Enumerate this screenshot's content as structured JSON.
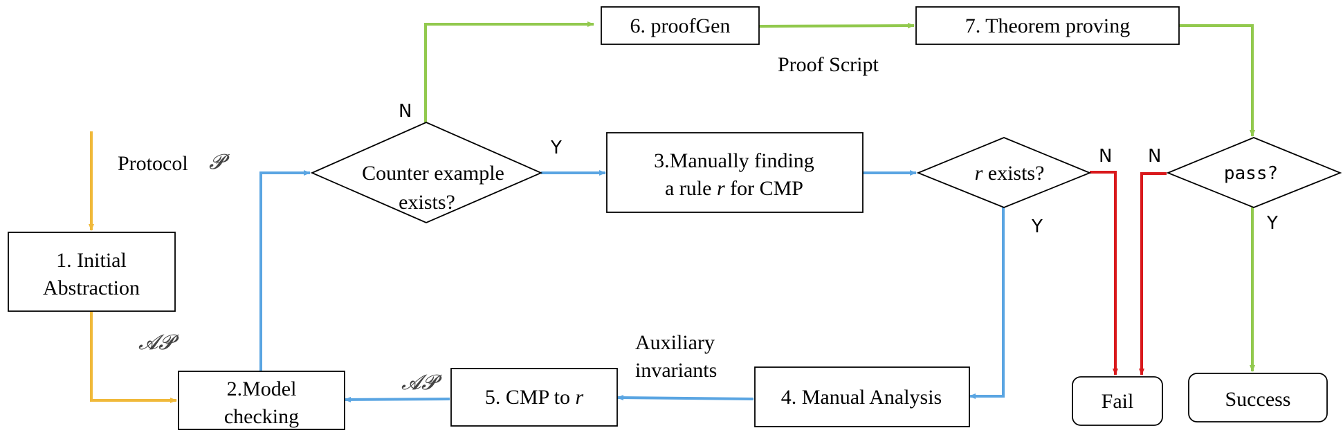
{
  "colors": {
    "yellow": "#F0B93A",
    "blue": "#5AA5E2",
    "green": "#92C94E",
    "red": "#D9191C"
  },
  "labels": {
    "protocol": "Protocol",
    "protocol_symbol": "𝓟",
    "ap_left": "𝓐𝓟",
    "ap_bottom": "𝓐𝓟",
    "proof_script": "Proof Script",
    "auxiliary_line1": "Auxiliary",
    "auxiliary_line2": "invariants",
    "n_counter": "N",
    "y_counter": "Y",
    "n_r_exists": "N",
    "y_r_exists": "Y",
    "n_pass": "N",
    "y_pass": "Y"
  },
  "nodes": {
    "initial_abstraction": {
      "line1": "1. Initial",
      "line2": "Abstraction"
    },
    "model_checking": {
      "line1": "2.Model",
      "line2": "checking"
    },
    "counter_example": {
      "line1": "Counter example",
      "line2": "exists?"
    },
    "manual_finding": {
      "line1": "3.Manually finding",
      "line2_pre": "a rule ",
      "line2_var": "r",
      "line2_post": " for CMP"
    },
    "r_exists": {
      "var": "r",
      "text": " exists?"
    },
    "manual_analysis": {
      "label": "4. Manual Analysis"
    },
    "cmp_to_r": {
      "pre": "5. CMP to ",
      "var": "r"
    },
    "proofgen": {
      "label": "6. proofGen"
    },
    "theorem_proving": {
      "label": "7. Theorem proving"
    },
    "pass": {
      "label": "pass?"
    },
    "fail": {
      "label": "Fail"
    },
    "success": {
      "label": "Success"
    }
  }
}
